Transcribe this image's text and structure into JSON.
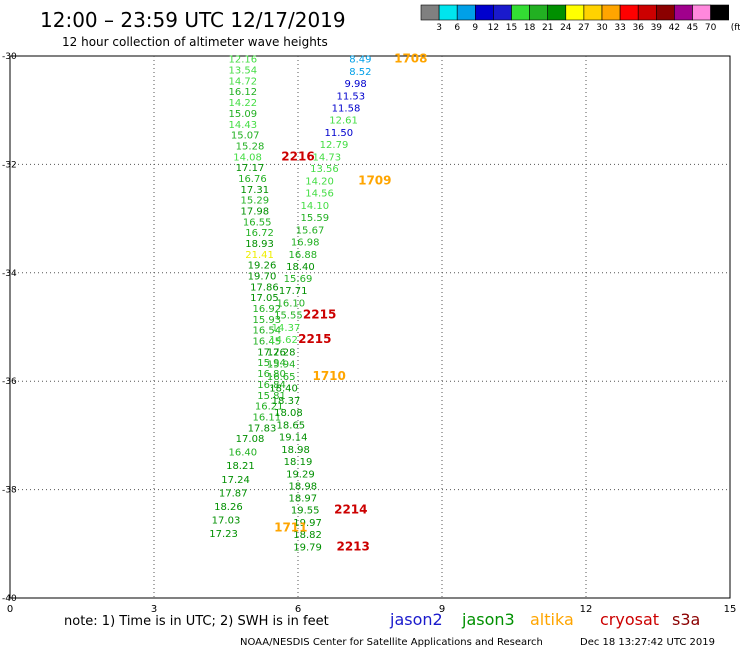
{
  "chart_data": {
    "type": "scatter",
    "title": "12:00 – 23:59 UTC 12/17/2019",
    "subtitle": "12 hour collection of altimeter wave heights",
    "xlim": [
      0,
      15
    ],
    "ylim": [
      -40,
      -30
    ],
    "x_ticks": [
      "0",
      "3",
      "6",
      "9",
      "12",
      "15"
    ],
    "y_ticks": [
      "-30",
      "-32",
      "-34",
      "-36",
      "-38",
      "-40"
    ],
    "x_tick_values": [
      0,
      3,
      6,
      9,
      12,
      15
    ],
    "y_tick_values": [
      -30,
      -32,
      -34,
      -36,
      -38,
      -40
    ],
    "grid": true,
    "color_scale": {
      "unit": "(ft)",
      "labels": [
        "3",
        "6",
        "9",
        "12",
        "15",
        "18",
        "21",
        "24",
        "27",
        "30",
        "33",
        "36",
        "39",
        "42",
        "45",
        "70"
      ],
      "colors": [
        "#808080",
        "#00e5ee",
        "#00a0e8",
        "#0000cd",
        "#1a1acc",
        "#33dd33",
        "#22b022",
        "#009000",
        "#ffff00",
        "#ffd200",
        "#ffa500",
        "#ff0000",
        "#cc0000",
        "#8b0000",
        "#a0008c",
        "#ff88dd",
        "#000000"
      ]
    },
    "tracks": [
      {
        "name": "jason2",
        "color": "#1a1acc"
      },
      {
        "name": "jason3",
        "color": "#009000"
      },
      {
        "name": "altika",
        "color": "#ffa500"
      },
      {
        "name": "cryosat",
        "color": "#cc0000"
      },
      {
        "name": "s3a",
        "color": "#8b0000"
      }
    ],
    "points": [
      {
        "x": 4.85,
        "y": -30.05,
        "label": "12.16",
        "color": "#44dd44"
      },
      {
        "x": 4.85,
        "y": -30.25,
        "label": "13.54",
        "color": "#44dd44"
      },
      {
        "x": 4.85,
        "y": -30.45,
        "label": "14.72",
        "color": "#44dd44"
      },
      {
        "x": 4.85,
        "y": -30.65,
        "label": "16.12",
        "color": "#22b022"
      },
      {
        "x": 4.85,
        "y": -30.85,
        "label": "14.22",
        "color": "#44dd44"
      },
      {
        "x": 4.85,
        "y": -31.05,
        "label": "15.09",
        "color": "#22b022"
      },
      {
        "x": 4.85,
        "y": -31.25,
        "label": "14.43",
        "color": "#44dd44"
      },
      {
        "x": 4.9,
        "y": -31.45,
        "label": "15.07",
        "color": "#22b022"
      },
      {
        "x": 5.0,
        "y": -31.65,
        "label": "15.28",
        "color": "#22b022"
      },
      {
        "x": 4.95,
        "y": -31.85,
        "label": "14.08",
        "color": "#44dd44"
      },
      {
        "x": 5.0,
        "y": -32.05,
        "label": "17.17",
        "color": "#009000"
      },
      {
        "x": 5.05,
        "y": -32.25,
        "label": "16.76",
        "color": "#22b022"
      },
      {
        "x": 5.1,
        "y": -32.45,
        "label": "17.31",
        "color": "#009000"
      },
      {
        "x": 5.1,
        "y": -32.65,
        "label": "15.29",
        "color": "#22b022"
      },
      {
        "x": 5.1,
        "y": -32.85,
        "label": "17.98",
        "color": "#009000"
      },
      {
        "x": 5.15,
        "y": -33.05,
        "label": "16.55",
        "color": "#22b022"
      },
      {
        "x": 5.2,
        "y": -33.25,
        "label": "16.72",
        "color": "#22b022"
      },
      {
        "x": 5.2,
        "y": -33.45,
        "label": "18.93",
        "color": "#009000"
      },
      {
        "x": 5.2,
        "y": -33.65,
        "label": "21.41",
        "color": "#eeee00"
      },
      {
        "x": 5.25,
        "y": -33.85,
        "label": "19.26",
        "color": "#009000"
      },
      {
        "x": 5.25,
        "y": -34.05,
        "label": "19.70",
        "color": "#009000"
      },
      {
        "x": 5.3,
        "y": -34.25,
        "label": "17.86",
        "color": "#009000"
      },
      {
        "x": 5.3,
        "y": -34.45,
        "label": "17.05",
        "color": "#009000"
      },
      {
        "x": 5.35,
        "y": -34.65,
        "label": "16.92",
        "color": "#22b022"
      },
      {
        "x": 5.35,
        "y": -34.85,
        "label": "15.93",
        "color": "#22b022"
      },
      {
        "x": 5.35,
        "y": -35.05,
        "label": "16.54",
        "color": "#22b022"
      },
      {
        "x": 5.35,
        "y": -35.25,
        "label": "16.45",
        "color": "#22b022"
      },
      {
        "x": 5.45,
        "y": -35.45,
        "label": "17.26",
        "color": "#009000"
      },
      {
        "x": 5.45,
        "y": -35.65,
        "label": "15.94",
        "color": "#22b022"
      },
      {
        "x": 5.45,
        "y": -35.85,
        "label": "16.80",
        "color": "#22b022"
      },
      {
        "x": 5.45,
        "y": -36.05,
        "label": "16.84",
        "color": "#22b022"
      },
      {
        "x": 5.45,
        "y": -36.25,
        "label": "15.81",
        "color": "#22b022"
      },
      {
        "x": 5.4,
        "y": -36.45,
        "label": "16.21",
        "color": "#22b022"
      },
      {
        "x": 5.35,
        "y": -36.65,
        "label": "16.11",
        "color": "#22b022"
      },
      {
        "x": 5.25,
        "y": -36.85,
        "label": "17.83",
        "color": "#009000"
      },
      {
        "x": 5.0,
        "y": -37.05,
        "label": "17.08",
        "color": "#009000"
      },
      {
        "x": 4.85,
        "y": -37.3,
        "label": "16.40",
        "color": "#22b022"
      },
      {
        "x": 4.8,
        "y": -37.55,
        "label": "18.21",
        "color": "#009000"
      },
      {
        "x": 4.7,
        "y": -37.8,
        "label": "17.24",
        "color": "#009000"
      },
      {
        "x": 4.65,
        "y": -38.05,
        "label": "17.87",
        "color": "#009000"
      },
      {
        "x": 4.55,
        "y": -38.3,
        "label": "18.26",
        "color": "#009000"
      },
      {
        "x": 4.5,
        "y": -38.55,
        "label": "17.03",
        "color": "#009000"
      },
      {
        "x": 4.45,
        "y": -38.8,
        "label": "17.23",
        "color": "#009000"
      },
      {
        "x": 7.3,
        "y": -30.05,
        "label": "8.49",
        "color": "#00a0e8"
      },
      {
        "x": 7.3,
        "y": -30.28,
        "label": "8.52",
        "color": "#00a0e8"
      },
      {
        "x": 7.2,
        "y": -30.5,
        "label": "9.98",
        "color": "#0000cd"
      },
      {
        "x": 7.1,
        "y": -30.73,
        "label": "11.53",
        "color": "#0000cd"
      },
      {
        "x": 7.0,
        "y": -30.95,
        "label": "11.58",
        "color": "#0000cd"
      },
      {
        "x": 6.95,
        "y": -31.17,
        "label": "12.61",
        "color": "#44dd44"
      },
      {
        "x": 6.85,
        "y": -31.4,
        "label": "11.50",
        "color": "#0000cd"
      },
      {
        "x": 6.75,
        "y": -31.62,
        "label": "12.79",
        "color": "#44dd44"
      },
      {
        "x": 6.6,
        "y": -31.85,
        "label": "14.73",
        "color": "#44dd44"
      },
      {
        "x": 6.55,
        "y": -32.07,
        "label": "13.56",
        "color": "#44dd44"
      },
      {
        "x": 6.45,
        "y": -32.3,
        "label": "14.20",
        "color": "#44dd44"
      },
      {
        "x": 6.45,
        "y": -32.52,
        "label": "14.56",
        "color": "#44dd44"
      },
      {
        "x": 6.35,
        "y": -32.75,
        "label": "14.10",
        "color": "#44dd44"
      },
      {
        "x": 6.35,
        "y": -32.97,
        "label": "15.59",
        "color": "#22b022"
      },
      {
        "x": 6.25,
        "y": -33.2,
        "label": "15.67",
        "color": "#22b022"
      },
      {
        "x": 6.15,
        "y": -33.42,
        "label": "16.98",
        "color": "#22b022"
      },
      {
        "x": 6.1,
        "y": -33.65,
        "label": "16.88",
        "color": "#22b022"
      },
      {
        "x": 6.05,
        "y": -33.87,
        "label": "18.40",
        "color": "#009000"
      },
      {
        "x": 6.0,
        "y": -34.1,
        "label": "15.69",
        "color": "#22b022"
      },
      {
        "x": 5.9,
        "y": -34.32,
        "label": "17.71",
        "color": "#009000"
      },
      {
        "x": 5.85,
        "y": -34.55,
        "label": "16.10",
        "color": "#22b022"
      },
      {
        "x": 5.8,
        "y": -34.77,
        "label": "15.55",
        "color": "#22b022"
      },
      {
        "x": 5.75,
        "y": -35.0,
        "label": "14.37",
        "color": "#44dd44"
      },
      {
        "x": 5.7,
        "y": -35.22,
        "label": "14.62",
        "color": "#44dd44"
      },
      {
        "x": 5.65,
        "y": -35.45,
        "label": "17.28",
        "color": "#009000"
      },
      {
        "x": 5.65,
        "y": -35.67,
        "label": "15.94",
        "color": "#22b022"
      },
      {
        "x": 5.65,
        "y": -35.9,
        "label": "16.65",
        "color": "#22b022"
      },
      {
        "x": 5.7,
        "y": -36.12,
        "label": "18.40",
        "color": "#009000"
      },
      {
        "x": 5.75,
        "y": -36.35,
        "label": "18.37",
        "color": "#009000"
      },
      {
        "x": 5.8,
        "y": -36.57,
        "label": "18.08",
        "color": "#009000"
      },
      {
        "x": 5.85,
        "y": -36.8,
        "label": "18.65",
        "color": "#009000"
      },
      {
        "x": 5.9,
        "y": -37.02,
        "label": "19.14",
        "color": "#009000"
      },
      {
        "x": 5.95,
        "y": -37.25,
        "label": "18.98",
        "color": "#009000"
      },
      {
        "x": 6.0,
        "y": -37.47,
        "label": "18.19",
        "color": "#009000"
      },
      {
        "x": 6.05,
        "y": -37.7,
        "label": "19.29",
        "color": "#009000"
      },
      {
        "x": 6.1,
        "y": -37.92,
        "label": "18.98",
        "color": "#009000"
      },
      {
        "x": 6.1,
        "y": -38.15,
        "label": "18.97",
        "color": "#009000"
      },
      {
        "x": 6.15,
        "y": -38.37,
        "label": "19.55",
        "color": "#009000"
      },
      {
        "x": 6.2,
        "y": -38.6,
        "label": "19.97",
        "color": "#009000"
      },
      {
        "x": 6.2,
        "y": -38.82,
        "label": "18.82",
        "color": "#009000"
      },
      {
        "x": 6.2,
        "y": -39.05,
        "label": "19.79",
        "color": "#009000"
      }
    ],
    "annotations": [
      {
        "x": 8.35,
        "y": -30.05,
        "label": "1708",
        "color": "#ffa500"
      },
      {
        "x": 6.0,
        "y": -31.85,
        "label": "2216",
        "color": "#cc0000"
      },
      {
        "x": 7.6,
        "y": -32.3,
        "label": "1709",
        "color": "#ffa500"
      },
      {
        "x": 6.45,
        "y": -34.77,
        "label": "2215",
        "color": "#cc0000"
      },
      {
        "x": 6.35,
        "y": -35.22,
        "label": "2215",
        "color": "#cc0000"
      },
      {
        "x": 6.65,
        "y": -35.9,
        "label": "1710",
        "color": "#ffa500"
      },
      {
        "x": 7.1,
        "y": -38.37,
        "label": "2214",
        "color": "#cc0000"
      },
      {
        "x": 5.85,
        "y": -38.7,
        "label": "1711",
        "color": "#ffa500"
      },
      {
        "x": 7.15,
        "y": -39.05,
        "label": "2213",
        "color": "#cc0000"
      }
    ]
  },
  "footer": {
    "note": "note:  1) Time is in UTC;  2) SWH is in feet",
    "credit": "NOAA/NESDIS Center for Satellite Applications and Research",
    "timestamp": "Dec 18 13:27:42 UTC 2019"
  }
}
